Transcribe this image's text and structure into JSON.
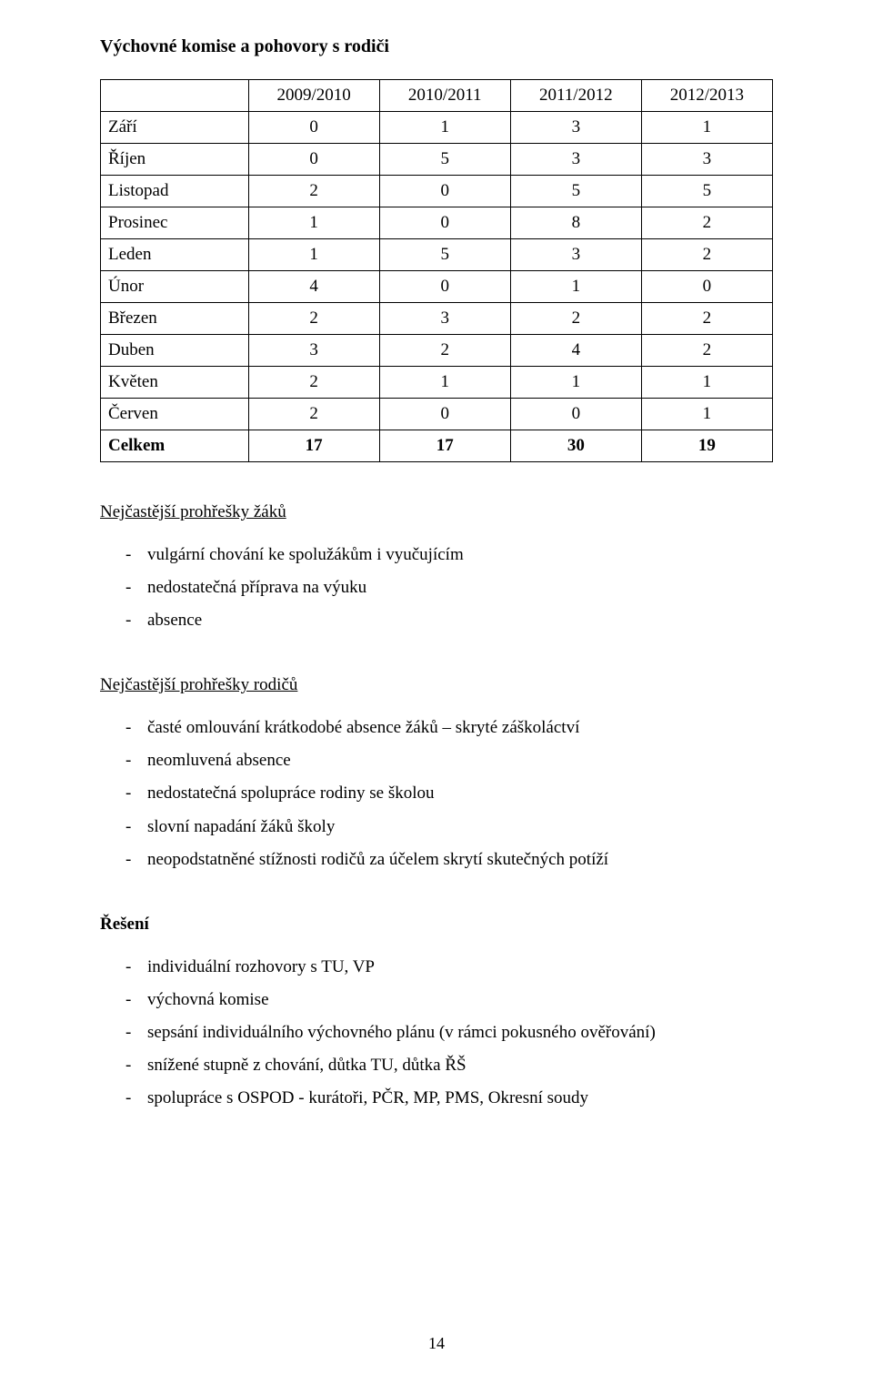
{
  "heading": "Výchovné komise a pohovory s rodiči",
  "table": {
    "columns": [
      "2009/2010",
      "2010/2011",
      "2011/2012",
      "2012/2013"
    ],
    "rows": [
      {
        "label": "Září",
        "values": [
          "0",
          "1",
          "3",
          "1"
        ],
        "bold": false
      },
      {
        "label": "Říjen",
        "values": [
          "0",
          "5",
          "3",
          "3"
        ],
        "bold": false
      },
      {
        "label": "Listopad",
        "values": [
          "2",
          "0",
          "5",
          "5"
        ],
        "bold": false
      },
      {
        "label": "Prosinec",
        "values": [
          "1",
          "0",
          "8",
          "2"
        ],
        "bold": false
      },
      {
        "label": "Leden",
        "values": [
          "1",
          "5",
          "3",
          "2"
        ],
        "bold": false
      },
      {
        "label": "Únor",
        "values": [
          "4",
          "0",
          "1",
          "0"
        ],
        "bold": false
      },
      {
        "label": "Březen",
        "values": [
          "2",
          "3",
          "2",
          "2"
        ],
        "bold": false
      },
      {
        "label": "Duben",
        "values": [
          "3",
          "2",
          "4",
          "2"
        ],
        "bold": false
      },
      {
        "label": "Květen",
        "values": [
          "2",
          "1",
          "1",
          "1"
        ],
        "bold": false
      },
      {
        "label": "Červen",
        "values": [
          "2",
          "0",
          "0",
          "1"
        ],
        "bold": false
      },
      {
        "label": "Celkem",
        "values": [
          "17",
          "17",
          "30",
          "19"
        ],
        "bold": true
      }
    ]
  },
  "sections": [
    {
      "title": "Nejčastější prohřešky žáků",
      "title_style": "underline",
      "items": [
        "vulgární chování ke spolužákům i vyučujícím",
        "nedostatečná příprava na výuku",
        "absence"
      ]
    },
    {
      "title": "Nejčastější prohřešky rodičů",
      "title_style": "underline",
      "items": [
        "časté omlouvání krátkodobé absence žáků – skryté záškoláctví",
        "neomluvená absence",
        "nedostatečná spolupráce rodiny se školou",
        "slovní napadání žáků školy",
        "neopodstatněné stížnosti rodičů za účelem skrytí skutečných potíží"
      ]
    },
    {
      "title": "Řešení",
      "title_style": "bold",
      "items": [
        "individuální rozhovory s TU, VP",
        "výchovná komise",
        "sepsání individuálního výchovného plánu (v rámci pokusného ověřování)",
        "snížené stupně z chování, důtka TU, důtka ŘŠ",
        "spolupráce s OSPOD - kurátoři, PČR, MP, PMS, Okresní soudy"
      ]
    }
  ],
  "page_number": "14",
  "styling": {
    "background": "#ffffff",
    "text_color": "#000000",
    "font_family": "Times New Roman",
    "body_fontsize": 19,
    "heading_fontsize": 20,
    "table_border_color": "#000000"
  }
}
